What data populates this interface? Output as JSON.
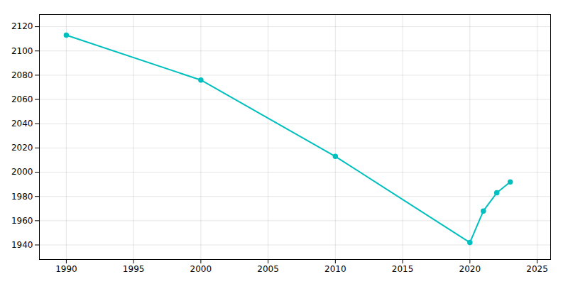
{
  "chart_data": {
    "type": "line",
    "x": [
      1990,
      2000,
      2010,
      2020,
      2021,
      2022,
      2023
    ],
    "values": [
      2113,
      2076,
      2013,
      1942,
      1968,
      1983,
      1992
    ],
    "color": "#00BFBF",
    "marker": "circle",
    "xlim": [
      1988,
      2026
    ],
    "xticks": [
      1990,
      1995,
      2000,
      2005,
      2010,
      2015,
      2020,
      2025
    ],
    "ylim": [
      1928,
      2130
    ],
    "yticks": [
      1940,
      1960,
      1980,
      2000,
      2020,
      2040,
      2060,
      2080,
      2100,
      2120
    ],
    "grid": true
  }
}
